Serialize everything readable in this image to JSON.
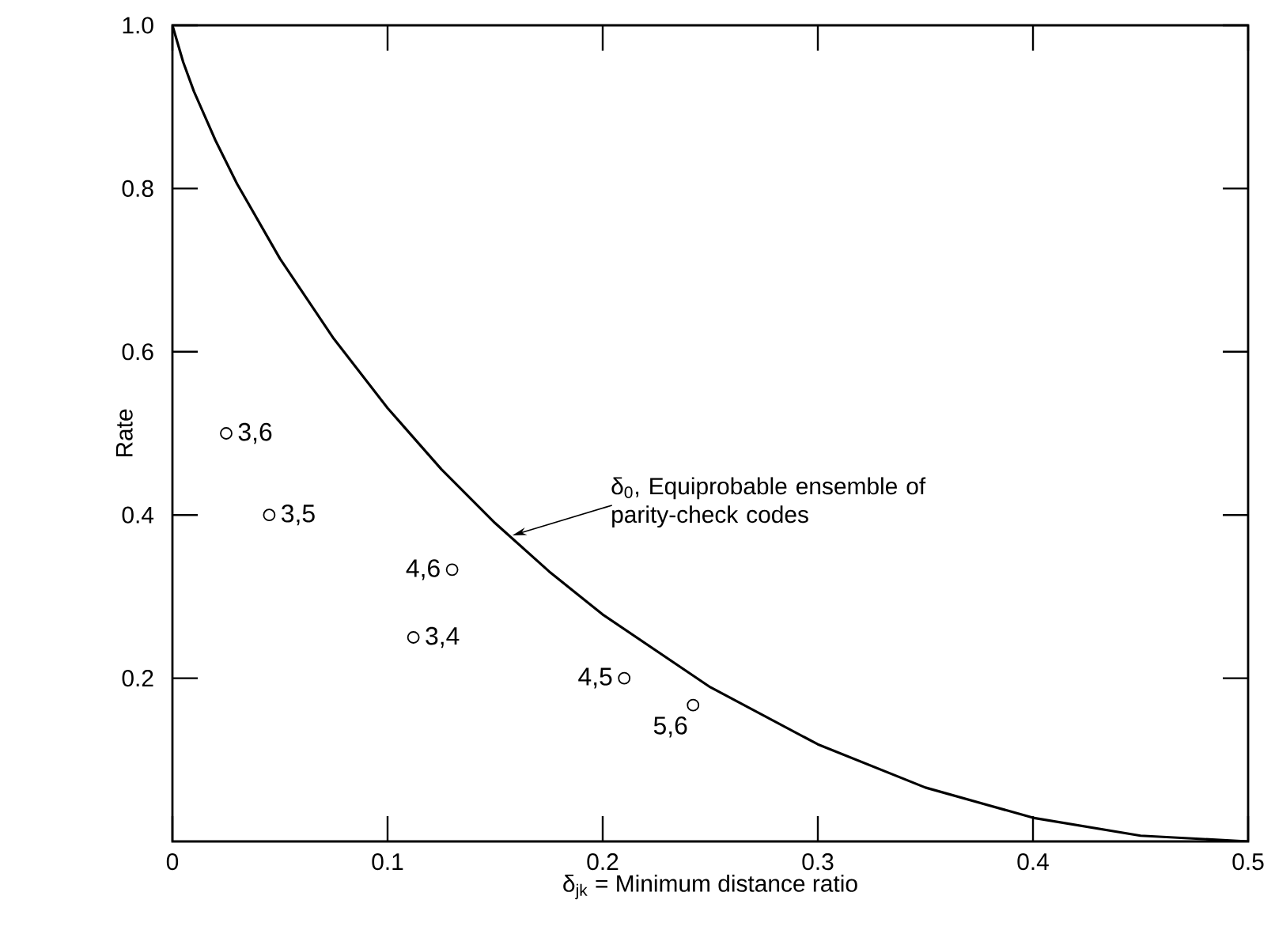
{
  "chart_data": {
    "type": "line",
    "xlabel": "δ$_{jk}$ = Minimum distance ratio",
    "ylabel": "Rate",
    "xlim": [
      0,
      0.5
    ],
    "ylim": [
      0,
      1.0
    ],
    "xticks": [
      0,
      0.1,
      0.2,
      0.3,
      0.4,
      0.5
    ],
    "yticks": [
      0.2,
      0.4,
      0.6,
      0.8,
      {
        "value": 1.0,
        "label": "1.0"
      }
    ],
    "grid": false,
    "series": [
      {
        "color": "#000000",
        "marker": "none",
        "line_style": "solid",
        "x": [
          0,
          0.005,
          0.01,
          0.02,
          0.03,
          0.05,
          0.075,
          0.1,
          0.125,
          0.15,
          0.175,
          0.2,
          0.25,
          0.3,
          0.35,
          0.4,
          0.45,
          0.5
        ],
        "values": [
          1.0,
          0.955,
          0.919,
          0.859,
          0.806,
          0.714,
          0.616,
          0.531,
          0.456,
          0.39,
          0.331,
          0.278,
          0.189,
          0.119,
          0.066,
          0.029,
          0.007,
          0
        ]
      },
      {
        "type": "scatter",
        "color": "#000000",
        "marker": "circle",
        "x": [
          0.025,
          0.045,
          0.13,
          0.112,
          0.21,
          0.242
        ],
        "values": [
          0.5,
          0.4,
          0.333,
          0.25,
          0.2,
          0.167
        ]
      }
    ],
    "annotations": [
      {
        "text": "δ$_{0}$, Equiprobable ensemble of parity-check codes",
        "x": 0.158,
        "y": 0.375
      },
      {
        "text": "3,6",
        "x": 0.025,
        "y": 0.5
      },
      {
        "text": "3,5",
        "x": 0.045,
        "y": 0.4
      },
      {
        "text": "4,6",
        "x": 0.13,
        "y": 0.333
      },
      {
        "text": "3,4",
        "x": 0.112,
        "y": 0.25
      },
      {
        "text": "4,5",
        "x": 0.21,
        "y": 0.2
      },
      {
        "text": "5,6",
        "x": 0.242,
        "y": 0.167
      }
    ]
  }
}
